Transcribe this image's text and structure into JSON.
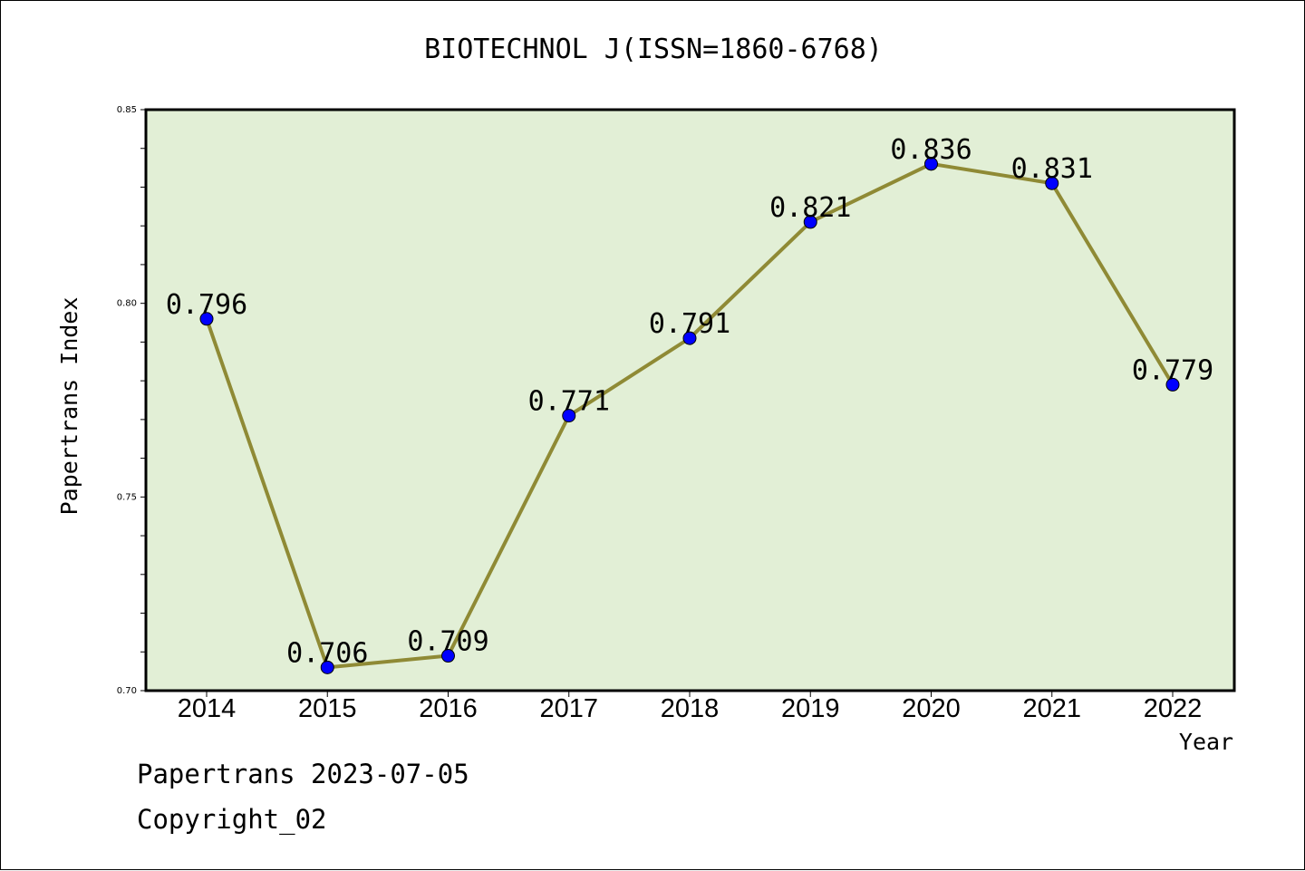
{
  "title": "BIOTECHNOL J(ISSN=1860-6768)",
  "footer": {
    "line1": "Papertrans 2023-07-05",
    "line2": "Copyright_02"
  },
  "colors": {
    "plot_background": "#e2efd6",
    "line": "#8f8a35",
    "marker": "#0000ff"
  },
  "chart_data": {
    "type": "line",
    "title": "BIOTECHNOL J(ISSN=1860-6768)",
    "xlabel": "Year",
    "ylabel": "Papertrans Index",
    "categories": [
      "2014",
      "2015",
      "2016",
      "2017",
      "2018",
      "2019",
      "2020",
      "2021",
      "2022"
    ],
    "values": [
      0.796,
      0.706,
      0.709,
      0.771,
      0.791,
      0.821,
      0.836,
      0.831,
      0.779
    ],
    "data_labels": [
      "0.796",
      "0.706",
      "0.709",
      "0.771",
      "0.791",
      "0.821",
      "0.836",
      "0.831",
      "0.779"
    ],
    "ylim": [
      0.7,
      0.85
    ],
    "yticks": [
      "0.70",
      "0.75",
      "0.80",
      "0.85"
    ],
    "grid": false,
    "legend": "none"
  }
}
